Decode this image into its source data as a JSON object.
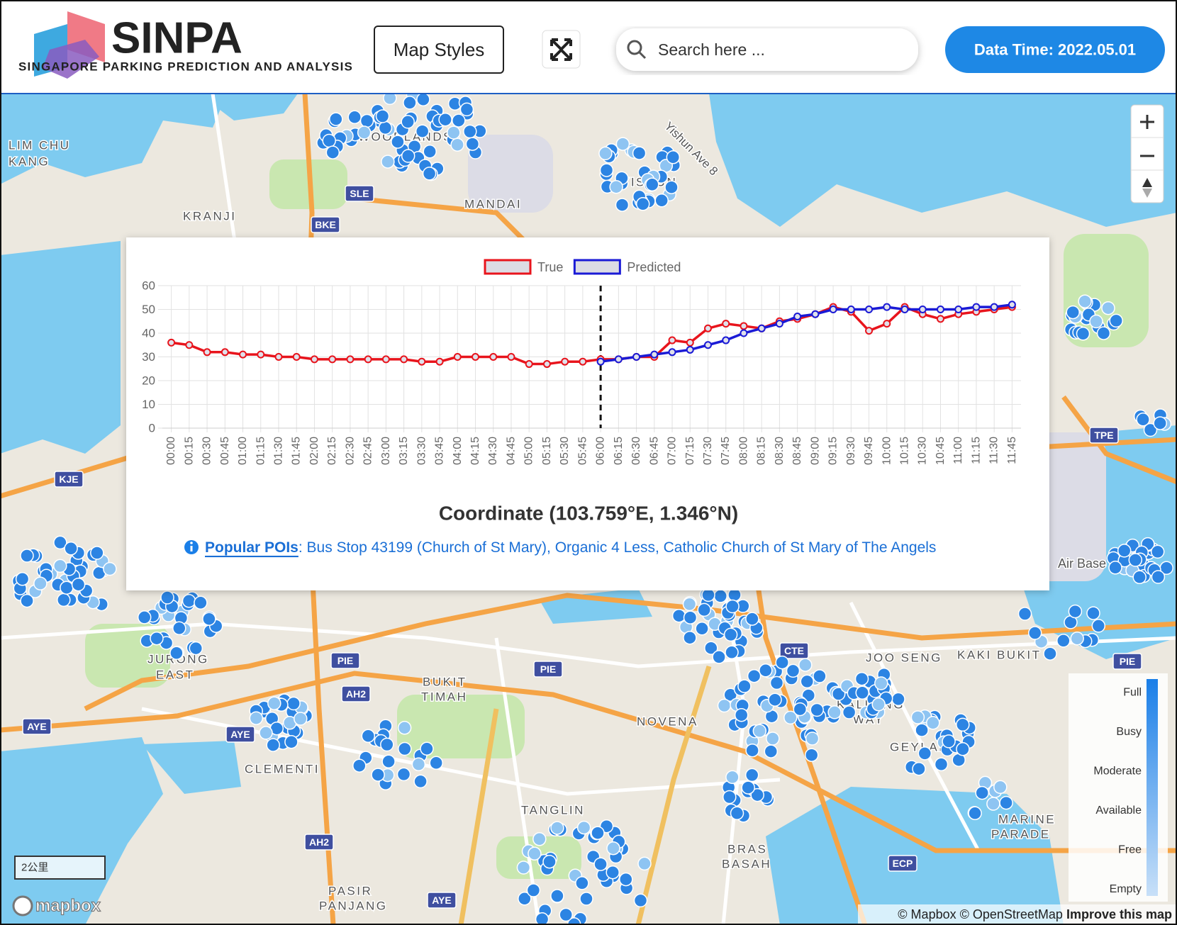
{
  "header": {
    "logo_title": "SINPA",
    "logo_subtitle": "SINGAPORE PARKING PREDICTION AND ANALYSIS",
    "map_styles": "Map Styles",
    "search_placeholder": "Search here ...",
    "data_time": "Data Time: 2022.05.01"
  },
  "map": {
    "labels": [
      "LIM CHU",
      "KANG",
      "WOODLANDS",
      "YISHUN",
      "MANDAI",
      "KRANJI",
      "Yishun Ave 8",
      "JURONG",
      "EAST",
      "BUKIT",
      "TIMAH",
      "NOVENA",
      "TANGLIN",
      "KALLANG",
      "WAY",
      "GEYLANG",
      "JOO SENG",
      "KAKI BUKIT",
      "MARINE",
      "PARADE",
      "PASIR",
      "PANJANG",
      "CLEMENTI",
      "BRAS",
      "BASAH",
      "Air Base"
    ],
    "shields": [
      "SLE",
      "BKE",
      "TPE",
      "KJE",
      "PIE",
      "PIE",
      "AH2",
      "AYE",
      "AYE",
      "AH2",
      "AYE",
      "ECP",
      "CTE",
      "PIE"
    ],
    "legend": [
      "Full",
      "Busy",
      "Moderate",
      "Available",
      "Free",
      "Empty"
    ],
    "scale": "2公里",
    "brand": "mapbox",
    "attribution": "© Mapbox © OpenStreetMap",
    "improve": "Improve this map"
  },
  "chart_data": {
    "type": "line",
    "categories": [
      "00:00",
      "00:15",
      "00:30",
      "00:45",
      "01:00",
      "01:15",
      "01:30",
      "01:45",
      "02:00",
      "02:15",
      "02:30",
      "02:45",
      "03:00",
      "03:15",
      "03:30",
      "03:45",
      "04:00",
      "04:15",
      "04:30",
      "04:45",
      "05:00",
      "05:15",
      "05:30",
      "05:45",
      "06:00",
      "06:15",
      "06:30",
      "06:45",
      "07:00",
      "07:15",
      "07:30",
      "07:45",
      "08:00",
      "08:15",
      "08:30",
      "08:45",
      "09:00",
      "09:15",
      "09:30",
      "09:45",
      "10:00",
      "10:15",
      "10:30",
      "10:45",
      "11:00",
      "11:15",
      "11:30",
      "11:45"
    ],
    "series": [
      {
        "name": "True",
        "color": "#e8141c",
        "values": [
          36,
          35,
          32,
          32,
          31,
          31,
          30,
          30,
          29,
          29,
          29,
          29,
          29,
          29,
          28,
          28,
          30,
          30,
          30,
          30,
          27,
          27,
          28,
          28,
          29,
          29,
          30,
          30,
          37,
          36,
          42,
          44,
          43,
          42,
          45,
          46,
          48,
          51,
          49,
          41,
          44,
          51,
          48,
          46,
          48,
          49,
          50,
          51
        ]
      },
      {
        "name": "Predicted",
        "color": "#1a1ad6",
        "values": [
          null,
          null,
          null,
          null,
          null,
          null,
          null,
          null,
          null,
          null,
          null,
          null,
          null,
          null,
          null,
          null,
          null,
          null,
          null,
          null,
          null,
          null,
          null,
          null,
          28,
          29,
          30,
          31,
          32,
          33,
          35,
          37,
          40,
          42,
          44,
          47,
          48,
          50,
          50,
          50,
          51,
          50,
          50,
          50,
          50,
          51,
          51,
          52
        ]
      }
    ],
    "ylim": [
      0,
      60
    ],
    "yticks": [
      0,
      10,
      20,
      30,
      40,
      50,
      60
    ],
    "grid": true,
    "divider": "06:00"
  },
  "panel": {
    "coordinate": "Coordinate (103.759°E, 1.346°N)",
    "poi_label": "Popular POIs",
    "poi_text": ": Bus Stop 43199 (Church of St Mary), Organic 4 Less, Catholic Church of St Mary of The Angels"
  }
}
